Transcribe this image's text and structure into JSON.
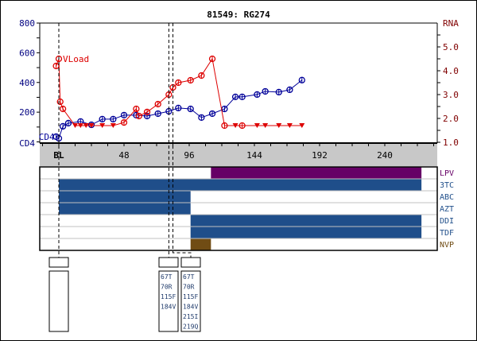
{
  "chart_data": {
    "type": "line",
    "title": "81549: RG274",
    "x_axis": {
      "ticks": [
        {
          "value": 0,
          "label": "BL"
        },
        {
          "value": 48,
          "label": "48"
        },
        {
          "value": 96,
          "label": "96"
        },
        {
          "value": 144,
          "label": "144"
        },
        {
          "value": 192,
          "label": "192"
        },
        {
          "value": 240,
          "label": "240"
        }
      ],
      "range": [
        -14,
        279
      ],
      "unit": "weeks"
    },
    "left_axis": {
      "label": "CD4",
      "range": [
        0,
        800
      ],
      "ticks": [
        "200",
        "400",
        "600",
        "800"
      ],
      "color": "#000080"
    },
    "right_axis": {
      "label": "RNA",
      "range": [
        1.0,
        5.0
      ],
      "ticks": [
        "1.0",
        "2.0",
        "3.0",
        "4.0",
        "5.0"
      ],
      "color": "#800000"
    },
    "series": [
      {
        "name": "CD4",
        "label": "CD4",
        "color": "#000099",
        "axis": "left",
        "points": [
          [
            -2,
            35
          ],
          [
            0,
            24
          ],
          [
            3,
            105
          ],
          [
            7,
            126
          ],
          [
            16,
            137
          ],
          [
            24,
            115
          ],
          [
            32,
            153
          ],
          [
            40,
            153
          ],
          [
            48,
            180
          ],
          [
            57,
            180
          ],
          [
            65,
            174
          ],
          [
            73,
            190
          ],
          [
            81,
            206
          ],
          [
            88,
            228
          ],
          [
            97,
            222
          ],
          [
            105,
            164
          ],
          [
            113,
            190
          ],
          [
            122,
            222
          ],
          [
            130,
            303
          ],
          [
            135,
            303
          ],
          [
            146,
            319
          ],
          [
            152,
            340
          ],
          [
            162,
            335
          ],
          [
            170,
            351
          ],
          [
            179,
            416
          ]
        ]
      },
      {
        "name": "VLoad",
        "label": "VLoad",
        "color": "#dd0000",
        "axis": "right",
        "points": [
          [
            -2,
            4.2,
            "o"
          ],
          [
            0,
            4.5,
            "o"
          ],
          [
            1,
            2.7,
            "o"
          ],
          [
            3,
            2.4,
            "o"
          ],
          [
            12,
            1.7,
            "v"
          ],
          [
            16,
            1.7,
            "v"
          ],
          [
            20,
            1.7,
            "v"
          ],
          [
            24,
            1.7,
            "v"
          ],
          [
            32,
            1.7,
            "v"
          ],
          [
            40,
            1.7,
            "v"
          ],
          [
            48,
            1.83,
            "o"
          ],
          [
            57,
            2.4,
            "o"
          ],
          [
            59,
            2.1,
            "o"
          ],
          [
            65,
            2.27,
            "o"
          ],
          [
            73,
            2.6,
            "o"
          ],
          [
            81,
            3.0,
            "o"
          ],
          [
            84,
            3.3,
            "o"
          ],
          [
            88,
            3.5,
            "o"
          ],
          [
            97,
            3.6,
            "o"
          ],
          [
            105,
            3.8,
            "o"
          ],
          [
            113,
            4.5,
            "o"
          ],
          [
            122,
            1.7,
            "o"
          ],
          [
            130,
            1.7,
            "v"
          ],
          [
            135,
            1.7,
            "o"
          ],
          [
            146,
            1.7,
            "v"
          ],
          [
            152,
            1.7,
            "v"
          ],
          [
            162,
            1.7,
            "v"
          ],
          [
            170,
            1.7,
            "v"
          ],
          [
            179,
            1.7,
            "v"
          ]
        ]
      }
    ],
    "markers": [
      0,
      81,
      84
    ],
    "drugs": [
      {
        "name": "LPV",
        "color": "#660066",
        "label_color": "#660066",
        "start": 112,
        "end": 267
      },
      {
        "name": "3TC",
        "color": "#1f4e8a",
        "label_color": "#1f4e8a",
        "start": 0,
        "end": 267
      },
      {
        "name": "ABC",
        "color": "#1f4e8a",
        "label_color": "#1f4e8a",
        "start": 0,
        "end": 97
      },
      {
        "name": "AZT",
        "color": "#1f4e8a",
        "label_color": "#1f4e8a",
        "start": 0,
        "end": 97
      },
      {
        "name": "DDI",
        "color": "#1f4e8a",
        "label_color": "#1f4e8a",
        "start": 97,
        "end": 267
      },
      {
        "name": "TDF",
        "color": "#1f4e8a",
        "label_color": "#1f4e8a",
        "start": 97,
        "end": 267
      },
      {
        "name": "NVP",
        "color": "#704c14",
        "label_color": "#704c14",
        "start": 97,
        "end": 112
      }
    ],
    "genotypes": [
      {
        "mutations": []
      },
      {
        "mutations": [
          "67T",
          "70R",
          "115F",
          "184V"
        ]
      },
      {
        "mutations": [
          "67T",
          "70R",
          "115F",
          "184V",
          "215I",
          "219Q"
        ]
      }
    ]
  }
}
